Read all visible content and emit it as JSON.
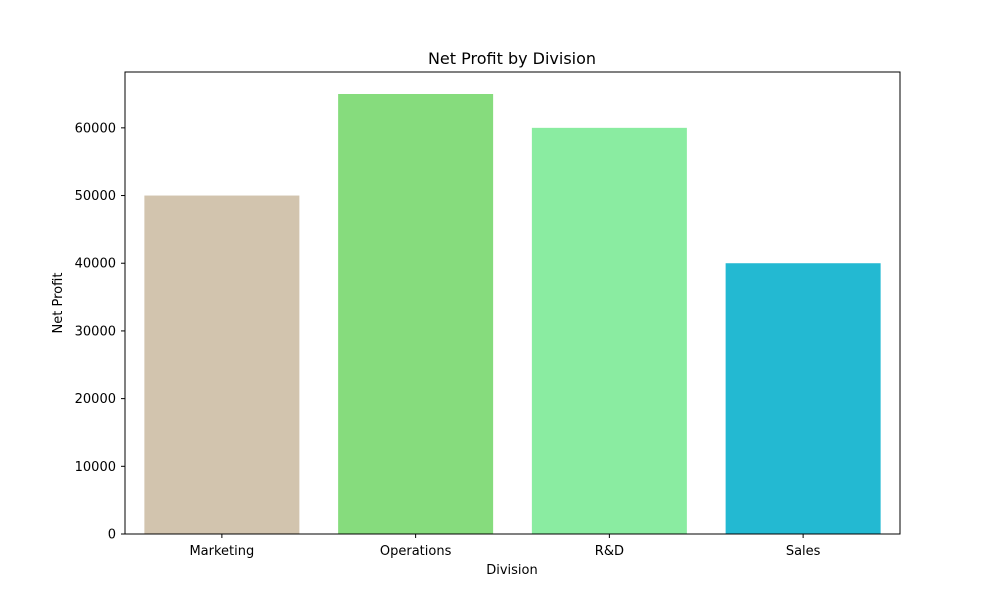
{
  "chart_data": {
    "type": "bar",
    "title": "Net Profit by Division",
    "xlabel": "Division",
    "ylabel": "Net Profit",
    "categories": [
      "Marketing",
      "Operations",
      "R&D",
      "Sales"
    ],
    "values": [
      50000,
      65000,
      60000,
      40000
    ],
    "colors": [
      "#d2c4ae",
      "#86dc7d",
      "#8aeca1",
      "#23b9d2"
    ],
    "ylim": [
      0,
      68250
    ],
    "yticks": [
      0,
      10000,
      20000,
      30000,
      40000,
      50000,
      60000
    ],
    "ytick_labels": [
      "0",
      "10000",
      "20000",
      "30000",
      "40000",
      "50000",
      "60000"
    ],
    "grid": false,
    "legend": "none"
  }
}
